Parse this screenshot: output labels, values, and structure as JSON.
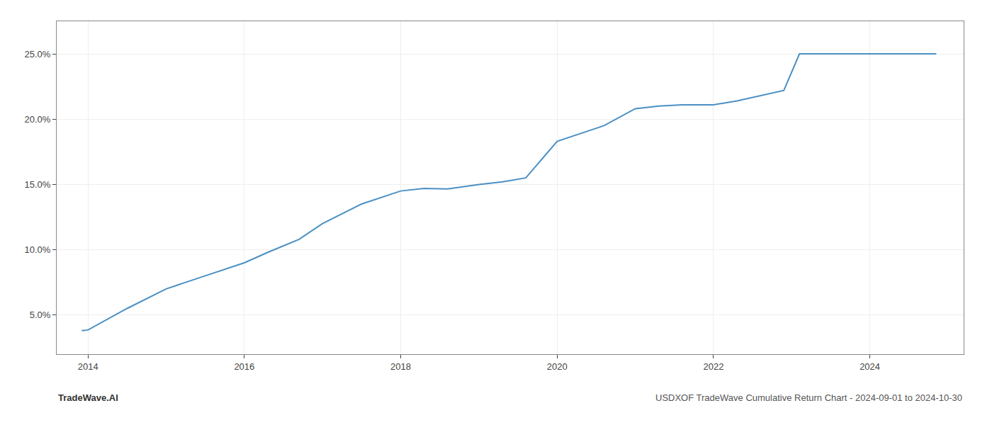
{
  "chart_data": {
    "type": "line",
    "x": [
      2013.92,
      2014.0,
      2014.5,
      2015.0,
      2015.5,
      2016.0,
      2016.3,
      2016.7,
      2017.0,
      2017.5,
      2018.0,
      2018.3,
      2018.6,
      2019.0,
      2019.3,
      2019.6,
      2020.0,
      2020.3,
      2020.6,
      2021.0,
      2021.3,
      2021.6,
      2022.0,
      2022.3,
      2022.6,
      2022.9,
      2023.1,
      2023.5,
      2024.0,
      2024.5,
      2024.85
    ],
    "values": [
      3.8,
      3.85,
      5.5,
      7.0,
      8.0,
      9.0,
      9.8,
      10.8,
      12.0,
      13.5,
      14.5,
      14.7,
      14.65,
      15.0,
      15.2,
      15.5,
      18.3,
      18.9,
      19.5,
      20.8,
      21.0,
      21.1,
      21.1,
      21.4,
      21.8,
      22.2,
      25.0,
      25.0,
      25.0,
      25.0,
      25.0
    ],
    "color": "#4a90c4",
    "xlim": [
      2013.6,
      2025.2
    ],
    "xticks": [
      2014,
      2016,
      2018,
      2020,
      2022,
      2024
    ],
    "ylim": [
      2.0,
      27.5
    ],
    "yticks": [
      {
        "value": 5.0,
        "label": "5.0%"
      },
      {
        "value": 10.0,
        "label": "10.0%"
      },
      {
        "value": 15.0,
        "label": "15.0%"
      },
      {
        "value": 20.0,
        "label": "20.0%"
      },
      {
        "value": 25.0,
        "label": "25.0%"
      }
    ],
    "grid": true,
    "annotations": [
      "TradeWave.AI",
      "USDXOF TradeWave Cumulative Return Chart - 2024-09-01 to 2024-10-30"
    ]
  }
}
